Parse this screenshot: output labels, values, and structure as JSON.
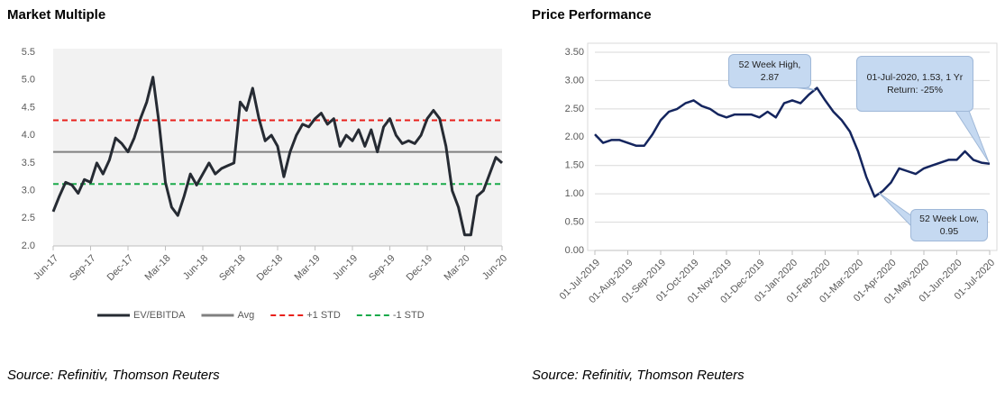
{
  "chart_data": [
    {
      "type": "line",
      "title": "Market Multiple",
      "source": "Source: Refinitiv, Thomson Reuters",
      "categories": [
        "Jun-17",
        null,
        null,
        null,
        null,
        null,
        "Sep-17",
        null,
        null,
        null,
        null,
        null,
        "Dec-17",
        null,
        null,
        null,
        null,
        null,
        "Mar-18",
        null,
        null,
        null,
        null,
        null,
        "Jun-18",
        null,
        null,
        null,
        null,
        null,
        "Sep-18",
        null,
        null,
        null,
        null,
        null,
        "Dec-18",
        null,
        null,
        null,
        null,
        null,
        "Mar-19",
        null,
        null,
        null,
        null,
        null,
        "Jun-19",
        null,
        null,
        null,
        null,
        null,
        "Sep-19",
        null,
        null,
        null,
        null,
        null,
        "Dec-19",
        null,
        null,
        null,
        null,
        null,
        "Mar-20",
        null,
        null,
        null,
        null,
        null,
        "Jun-20"
      ],
      "series": [
        {
          "name": "EV/EBITDA",
          "color": "#262b33",
          "values": [
            2.62,
            2.9,
            3.15,
            3.1,
            2.95,
            3.2,
            3.15,
            3.5,
            3.3,
            3.55,
            3.95,
            3.85,
            3.7,
            3.95,
            4.3,
            4.6,
            5.05,
            4.2,
            3.15,
            2.7,
            2.55,
            2.9,
            3.3,
            3.1,
            3.3,
            3.5,
            3.3,
            3.4,
            3.45,
            3.5,
            4.6,
            4.45,
            4.85,
            4.3,
            3.9,
            4.0,
            3.8,
            3.25,
            3.7,
            4.0,
            4.2,
            4.15,
            4.3,
            4.4,
            4.2,
            4.3,
            3.8,
            4.0,
            3.9,
            4.1,
            3.8,
            4.1,
            3.7,
            4.15,
            4.3,
            4.0,
            3.85,
            3.9,
            3.85,
            4.0,
            4.3,
            4.45,
            4.3,
            3.8,
            3.0,
            2.7,
            2.2,
            2.2,
            2.9,
            3.0,
            3.3,
            3.6,
            3.5
          ]
        }
      ],
      "lines": [
        {
          "name": "Avg",
          "color": "#808080",
          "value": 3.7,
          "dash": false
        },
        {
          "name": "+1 STD",
          "color": "#e8201b",
          "value": 4.27,
          "dash": true
        },
        {
          "name": "-1 STD",
          "color": "#1aaa4a",
          "value": 3.12,
          "dash": true
        }
      ],
      "ylim": [
        2,
        5.5
      ],
      "yticks": [
        {
          "value": 2,
          "label": "2.0"
        },
        2.5,
        {
          "value": 3,
          "label": "3.0"
        },
        3.5,
        {
          "value": 4,
          "label": "4.0"
        },
        4.5,
        {
          "value": 5,
          "label": "5.0"
        },
        5.5
      ],
      "grid": false,
      "legend": "bottom"
    },
    {
      "type": "line",
      "title": "Price Performance",
      "source": "Source: Refinitiv, Thomson Reuters",
      "categories": [
        "01-Jul-2019",
        null,
        null,
        null,
        "01-Aug-2019",
        null,
        null,
        null,
        "01-Sep-2019",
        null,
        null,
        null,
        "01-Oct-2019",
        null,
        null,
        null,
        "01-Nov-2019",
        null,
        null,
        null,
        "01-Dec-2019",
        null,
        null,
        null,
        "01-Jan-2020",
        null,
        null,
        null,
        "01-Feb-2020",
        null,
        null,
        null,
        "01-Mar-2020",
        null,
        null,
        null,
        "01-Apr-2020",
        null,
        null,
        null,
        "01-May-2020",
        null,
        null,
        null,
        "01-Jun-2020",
        null,
        null,
        null,
        "01-Jul-2020"
      ],
      "series": [
        {
          "name": "Price",
          "color": "#14255e",
          "values": [
            2.05,
            1.9,
            1.95,
            1.95,
            1.9,
            1.85,
            1.85,
            2.05,
            2.3,
            2.45,
            2.5,
            2.6,
            2.65,
            2.55,
            2.5,
            2.4,
            2.35,
            2.4,
            2.4,
            2.4,
            2.35,
            2.45,
            2.35,
            2.6,
            2.65,
            2.6,
            2.75,
            2.87,
            2.65,
            2.45,
            2.3,
            2.1,
            1.75,
            1.3,
            0.95,
            1.05,
            1.2,
            1.45,
            1.4,
            1.35,
            1.45,
            1.5,
            1.55,
            1.6,
            1.6,
            1.75,
            1.6,
            1.55,
            1.53
          ]
        }
      ],
      "ylim": [
        0,
        3.5
      ],
      "yticks": [
        {
          "value": 0,
          "label": "0.00"
        },
        {
          "value": 0.5,
          "label": "0.50"
        },
        {
          "value": 1,
          "label": "1.00"
        },
        {
          "value": 1.5,
          "label": "1.50"
        },
        {
          "value": 2,
          "label": "2.00"
        },
        {
          "value": 2.5,
          "label": "2.50"
        },
        {
          "value": 3,
          "label": "3.00"
        },
        {
          "value": 3.5,
          "label": "3.50"
        }
      ],
      "grid": true,
      "annotations": [
        "52 Week High, 2.87",
        "52 Week Low, 0.95",
        "01-Jul-2020, 1.53, 1 Yr Return: -25%"
      ]
    }
  ]
}
